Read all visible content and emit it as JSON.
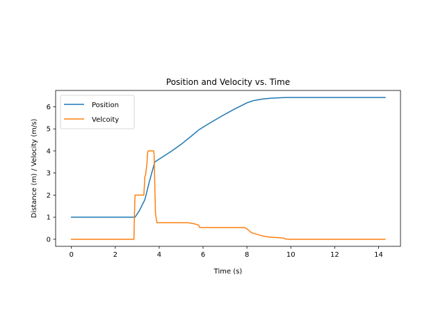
{
  "chart_data": {
    "type": "line",
    "title": "Position and Velocity vs. Time",
    "xlabel": "Time (s)",
    "ylabel": "Distance (m) / Velocity (m/s)",
    "xlim": [
      -0.72,
      15.0
    ],
    "ylim": [
      -0.32,
      6.74
    ],
    "xticks": [
      0,
      2,
      4,
      6,
      8,
      10,
      12,
      14
    ],
    "yticks": [
      0,
      1,
      2,
      3,
      4,
      5,
      6
    ],
    "grid": false,
    "legend_position": "top-left",
    "series": [
      {
        "name": "Position",
        "color": "#1f77b4",
        "x": [
          0,
          2.9,
          3.1,
          3.35,
          3.55,
          3.8,
          4.5,
          5.0,
          5.5,
          5.8,
          6.2,
          6.8,
          7.4,
          8.0,
          8.3,
          8.7,
          9.1,
          9.5,
          9.8,
          10.5,
          12.0,
          14.3
        ],
        "y": [
          1.0,
          1.0,
          1.3,
          1.8,
          2.6,
          3.5,
          3.95,
          4.3,
          4.7,
          4.95,
          5.2,
          5.55,
          5.88,
          6.18,
          6.28,
          6.35,
          6.39,
          6.41,
          6.42,
          6.42,
          6.42,
          6.42
        ]
      },
      {
        "name": "Velcoity",
        "color": "#ff7f0e",
        "x": [
          0,
          2.85,
          2.87,
          2.9,
          3.3,
          3.33,
          3.35,
          3.38,
          3.45,
          3.47,
          3.5,
          3.75,
          3.77,
          3.8,
          3.83,
          3.87,
          3.9,
          5.3,
          5.6,
          5.8,
          5.85,
          7.9,
          8.0,
          8.2,
          8.7,
          9.0,
          9.6,
          9.7,
          9.75,
          10.0,
          12.0,
          14.3
        ],
        "y": [
          0,
          0,
          1.0,
          2.0,
          2.0,
          2.5,
          2.85,
          2.9,
          3.5,
          3.9,
          4.0,
          4.0,
          3.8,
          2.5,
          1.2,
          0.9,
          0.75,
          0.75,
          0.7,
          0.64,
          0.53,
          0.53,
          0.47,
          0.3,
          0.15,
          0.1,
          0.06,
          0.05,
          0.01,
          0,
          0,
          0
        ]
      }
    ]
  }
}
